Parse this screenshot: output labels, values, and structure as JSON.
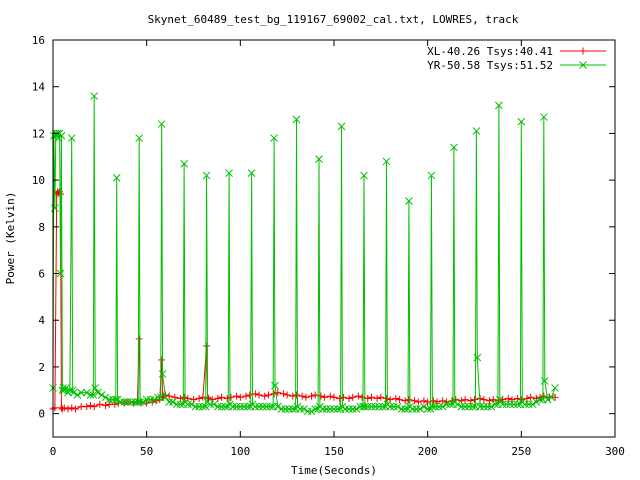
{
  "chart_data": {
    "type": "line",
    "title": "Skynet_60489_test_bg_119167_69002_cal.txt, LOWRES, track",
    "xlabel": "Time(Seconds)",
    "ylabel": "Power (Kelvin)",
    "xlim": [
      0,
      300
    ],
    "ylim": [
      -1,
      16
    ],
    "x_ticks": [
      0,
      50,
      100,
      150,
      200,
      250,
      300
    ],
    "y_ticks": [
      0,
      2,
      4,
      6,
      8,
      10,
      12,
      14,
      16
    ],
    "grid": false,
    "legend_position": "top-right",
    "series": [
      {
        "name": "XL-40.26 Tsys:40.41",
        "color": "#ff0000",
        "marker": "plus",
        "x": [
          0,
          1,
          2,
          2.5,
          3,
          3.5,
          4,
          4.5,
          5,
          6,
          8,
          10,
          12,
          15,
          18,
          20,
          22,
          25,
          28,
          30,
          33,
          35,
          38,
          40,
          43,
          45,
          46,
          46.5,
          47,
          50,
          53,
          55,
          57,
          58,
          58.5,
          59,
          60,
          62,
          65,
          68,
          70,
          72,
          75,
          78,
          80,
          82,
          82.5,
          83,
          85,
          88,
          90,
          93,
          95,
          98,
          100,
          103,
          105,
          108,
          110,
          113,
          115,
          118,
          120,
          123,
          125,
          128,
          130,
          133,
          135,
          138,
          140,
          143,
          145,
          148,
          150,
          153,
          155,
          158,
          160,
          163,
          165,
          168,
          170,
          173,
          175,
          178,
          180,
          183,
          185,
          188,
          190,
          193,
          195,
          198,
          200,
          203,
          205,
          208,
          210,
          213,
          215,
          218,
          220,
          223,
          225,
          228,
          230,
          233,
          235,
          238,
          240,
          243,
          245,
          248,
          250,
          253,
          255,
          258,
          260,
          262,
          265,
          268
        ],
        "y": [
          0.2,
          0.25,
          9.4,
          9.5,
          9.45,
          9.5,
          9.4,
          0.25,
          0.2,
          0.25,
          0.2,
          0.25,
          0.2,
          0.3,
          0.3,
          0.35,
          0.3,
          0.4,
          0.35,
          0.4,
          0.4,
          0.45,
          0.45,
          0.5,
          0.45,
          0.5,
          3.2,
          0.5,
          0.45,
          0.45,
          0.5,
          0.55,
          0.6,
          2.3,
          0.7,
          0.75,
          0.8,
          0.75,
          0.7,
          0.65,
          0.7,
          0.65,
          0.6,
          0.65,
          0.7,
          2.9,
          0.7,
          0.65,
          0.6,
          0.65,
          0.7,
          0.65,
          0.7,
          0.75,
          0.7,
          0.75,
          0.8,
          0.85,
          0.8,
          0.75,
          0.8,
          0.85,
          0.9,
          0.85,
          0.8,
          0.75,
          0.8,
          0.75,
          0.7,
          0.75,
          0.8,
          0.75,
          0.7,
          0.75,
          0.7,
          0.65,
          0.7,
          0.65,
          0.7,
          0.75,
          0.7,
          0.65,
          0.7,
          0.65,
          0.7,
          0.65,
          0.6,
          0.65,
          0.6,
          0.55,
          0.6,
          0.55,
          0.5,
          0.55,
          0.5,
          0.55,
          0.5,
          0.55,
          0.5,
          0.55,
          0.6,
          0.55,
          0.6,
          0.55,
          0.6,
          0.65,
          0.6,
          0.55,
          0.6,
          0.55,
          0.6,
          0.65,
          0.6,
          0.65,
          0.6,
          0.65,
          0.7,
          0.65,
          0.7,
          0.75,
          0.7,
          0.7
        ]
      },
      {
        "name": "YR-50.58 Tsys:51.52",
        "color": "#00c000",
        "marker": "cross",
        "x": [
          0,
          0.5,
          1,
          1.5,
          2,
          2.5,
          3,
          3.5,
          4,
          4.5,
          5,
          5.5,
          6,
          7,
          8,
          9,
          10,
          10.5,
          11,
          13,
          15,
          18,
          20,
          21.5,
          22,
          22.5,
          24,
          26,
          28,
          30,
          32,
          33.5,
          34,
          34.5,
          36,
          38,
          40,
          42,
          44,
          45.5,
          46,
          46.5,
          48,
          50,
          52,
          54,
          56,
          57.5,
          58,
          58.5,
          60,
          62,
          64,
          66,
          68,
          69.5,
          70,
          70.5,
          72,
          74,
          76,
          78,
          80,
          81.5,
          82,
          82.5,
          84,
          86,
          88,
          90,
          92,
          93.5,
          94,
          94.5,
          96,
          98,
          100,
          102,
          104,
          105.5,
          106,
          106.5,
          108,
          110,
          112,
          114,
          116,
          117.5,
          118,
          118.5,
          120,
          122,
          124,
          126,
          128,
          129.5,
          130,
          130.5,
          132,
          134,
          136,
          138,
          140,
          141.5,
          142,
          142.5,
          144,
          146,
          148,
          150,
          152,
          153.5,
          154,
          154.5,
          156,
          158,
          160,
          162,
          164,
          165.5,
          166,
          166.5,
          168,
          170,
          172,
          174,
          176,
          177.5,
          178,
          178.5,
          180,
          182,
          184,
          186,
          188,
          189.5,
          190,
          190.5,
          192,
          194,
          196,
          198,
          200,
          201.5,
          202,
          202.5,
          204,
          206,
          208,
          210,
          212,
          213.5,
          214,
          214.5,
          216,
          218,
          220,
          222,
          224,
          225.5,
          226,
          226.5,
          228,
          230,
          232,
          234,
          236,
          237.5,
          238,
          238.5,
          240,
          242,
          244,
          246,
          248,
          249.5,
          250,
          250.5,
          252,
          254,
          256,
          258,
          260,
          261.5,
          262,
          262.5,
          264,
          266,
          268
        ],
        "y": [
          1.1,
          11.9,
          8.8,
          12,
          11.9,
          12,
          11.8,
          12,
          6,
          11.9,
          1.0,
          1.1,
          1.0,
          1.1,
          0.9,
          1.0,
          11.8,
          1.0,
          0.9,
          0.8,
          0.9,
          0.9,
          0.8,
          0.8,
          13.6,
          1.1,
          0.9,
          0.8,
          0.7,
          0.6,
          0.6,
          0.6,
          10.1,
          0.6,
          0.5,
          0.5,
          0.5,
          0.5,
          0.5,
          0.5,
          11.8,
          0.5,
          0.5,
          0.6,
          0.6,
          0.6,
          0.7,
          0.7,
          12.4,
          1.7,
          0.7,
          0.5,
          0.5,
          0.4,
          0.4,
          0.4,
          10.7,
          0.5,
          0.4,
          0.4,
          0.3,
          0.3,
          0.3,
          0.3,
          10.2,
          0.5,
          0.4,
          0.4,
          0.3,
          0.3,
          0.3,
          0.3,
          10.3,
          0.4,
          0.3,
          0.3,
          0.3,
          0.3,
          0.3,
          0.3,
          10.3,
          0.4,
          0.3,
          0.3,
          0.3,
          0.3,
          0.3,
          0.3,
          11.8,
          1.2,
          0.3,
          0.2,
          0.2,
          0.2,
          0.2,
          0.2,
          12.6,
          0.3,
          0.2,
          0.2,
          0.1,
          0.1,
          0.2,
          0.2,
          10.9,
          0.3,
          0.2,
          0.2,
          0.2,
          0.2,
          0.2,
          0.2,
          12.3,
          0.3,
          0.2,
          0.2,
          0.2,
          0.2,
          0.3,
          0.3,
          10.2,
          0.3,
          0.3,
          0.3,
          0.3,
          0.3,
          0.3,
          0.3,
          10.8,
          0.4,
          0.3,
          0.3,
          0.3,
          0.2,
          0.2,
          0.2,
          9.1,
          0.3,
          0.2,
          0.2,
          0.2,
          0.3,
          0.2,
          0.2,
          10.2,
          0.3,
          0.3,
          0.3,
          0.3,
          0.4,
          0.4,
          0.4,
          11.4,
          0.5,
          0.4,
          0.3,
          0.3,
          0.3,
          0.3,
          0.3,
          12.1,
          2.4,
          0.3,
          0.3,
          0.3,
          0.3,
          0.4,
          0.4,
          13.2,
          0.6,
          0.4,
          0.4,
          0.4,
          0.4,
          0.4,
          0.4,
          12.5,
          0.5,
          0.4,
          0.4,
          0.4,
          0.5,
          0.6,
          0.6,
          12.7,
          1.4,
          0.6,
          0.7,
          1.1
        ]
      }
    ]
  }
}
